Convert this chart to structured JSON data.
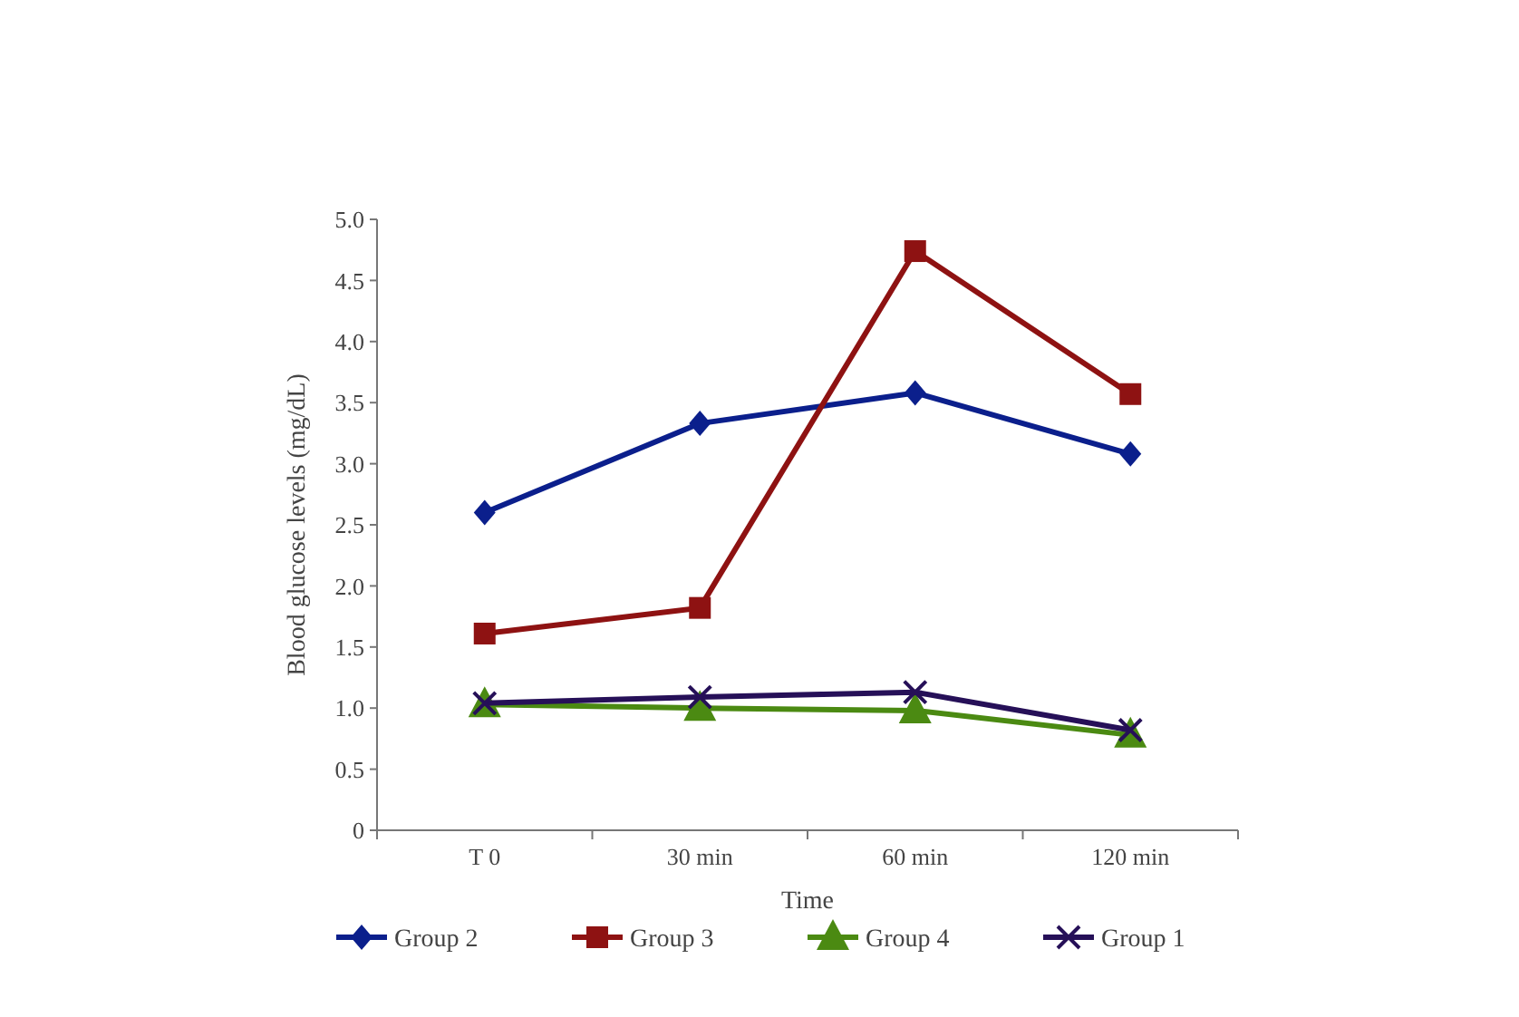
{
  "chart_data": {
    "type": "line",
    "xlabel": "Time",
    "ylabel": "Blood glucose levels (mg/dL)",
    "categories": [
      "T 0",
      "30 min",
      "60 min",
      "120 min"
    ],
    "series": [
      {
        "name": "Group 2",
        "color": "#0b1f8c",
        "marker": "diamond",
        "values": [
          2.6,
          3.33,
          3.58,
          3.08
        ]
      },
      {
        "name": "Group 3",
        "color": "#8e1212",
        "marker": "square",
        "values": [
          1.61,
          1.82,
          4.74,
          3.57
        ]
      },
      {
        "name": "Group 4",
        "color": "#4b8a12",
        "marker": "triangle",
        "values": [
          1.03,
          1.0,
          0.98,
          0.78
        ]
      },
      {
        "name": "Group 1",
        "color": "#261058",
        "marker": "cross",
        "values": [
          1.04,
          1.09,
          1.13,
          0.82
        ]
      }
    ],
    "ylim": [
      0,
      5
    ],
    "yticks": [
      {
        "value": 0,
        "label": "0"
      },
      0.5,
      {
        "value": 1,
        "label": "1.0"
      },
      1.5,
      {
        "value": 2,
        "label": "2.0"
      },
      2.5,
      {
        "value": 3,
        "label": "3.0"
      },
      3.5,
      {
        "value": 4,
        "label": "4.0"
      },
      4.5,
      {
        "value": 5,
        "label": "5.0"
      }
    ],
    "grid": false,
    "legend": "bottom",
    "line_style": "solid"
  }
}
